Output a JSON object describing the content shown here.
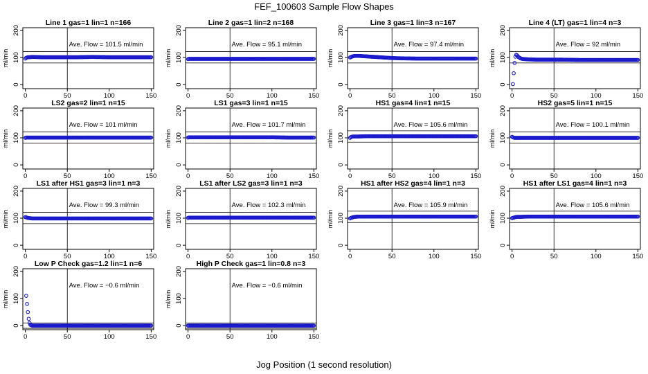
{
  "figure": {
    "title": "FEF_100603  Sample Flow Shapes",
    "xlabel": "Jog Position (1 second resolution)"
  },
  "colors": {
    "points": "#1a1acc",
    "axes": "#000000"
  },
  "chart_data": [
    {
      "type": "scatter",
      "title": "Line 1 gas=1 lin=1 n=166",
      "ave_flow": 101.5,
      "annotation": "Ave. Flow =  101.5  ml/min",
      "ylabel": "ml/min",
      "xlim": [
        -3,
        153
      ],
      "ylim": [
        -15,
        210
      ],
      "xticks": [
        0,
        50,
        100,
        150
      ],
      "yticks": [
        0,
        100,
        200
      ],
      "hlines": [
        80,
        122
      ],
      "vline": 50,
      "series": [
        {
          "x": [
            0,
            1,
            2,
            3,
            4,
            5,
            8,
            10,
            20,
            40,
            60,
            80,
            100,
            120,
            140,
            150
          ],
          "y": [
            96,
            99,
            100,
            101,
            101,
            101,
            102,
            102,
            101,
            101,
            101,
            102,
            101,
            101,
            101,
            101
          ]
        }
      ]
    },
    {
      "type": "scatter",
      "title": "Line 2 gas=1 lin=2 n=168",
      "ave_flow": 95.1,
      "annotation": "Ave. Flow =  95.1  ml/min",
      "ylabel": "ml/min",
      "xlim": [
        -3,
        153
      ],
      "ylim": [
        -15,
        210
      ],
      "xticks": [
        0,
        50,
        100,
        150
      ],
      "yticks": [
        0,
        100,
        200
      ],
      "hlines": [
        80,
        122
      ],
      "vline": 50,
      "series": [
        {
          "x": [
            0,
            1,
            2,
            3,
            5,
            10,
            20,
            40,
            60,
            80,
            100,
            120,
            140,
            150
          ],
          "y": [
            94,
            95,
            95,
            95,
            95,
            95,
            95,
            95,
            95,
            95,
            95,
            95,
            95,
            95
          ]
        }
      ]
    },
    {
      "type": "scatter",
      "title": "Line 3 gas=1 lin=3 n=167",
      "ave_flow": 97.4,
      "annotation": "Ave. Flow =  97.4  ml/min",
      "ylabel": "ml/min",
      "xlim": [
        -3,
        153
      ],
      "ylim": [
        -15,
        210
      ],
      "xticks": [
        0,
        50,
        100,
        150
      ],
      "yticks": [
        0,
        100,
        200
      ],
      "hlines": [
        80,
        122
      ],
      "vline": 50,
      "series": [
        {
          "x": [
            0,
            2,
            4,
            6,
            8,
            10,
            15,
            20,
            25,
            30,
            40,
            50,
            60,
            80,
            100,
            120,
            140,
            150
          ],
          "y": [
            100,
            103,
            105,
            106,
            106,
            106,
            105,
            104,
            103,
            102,
            100,
            98,
            97,
            96,
            96,
            96,
            96,
            96
          ]
        }
      ]
    },
    {
      "type": "scatter",
      "title": "Line 4 (LT) gas=1 lin=4 n=3",
      "ave_flow": 92,
      "annotation": "Ave. Flow =  92  ml/min",
      "ylabel": "ml/min",
      "xlim": [
        -3,
        153
      ],
      "ylim": [
        -15,
        210
      ],
      "xticks": [
        0,
        50,
        100,
        150
      ],
      "yticks": [
        0,
        100,
        200
      ],
      "hlines": [
        80,
        122
      ],
      "vline": 50,
      "series": [
        {
          "x": [
            1,
            2,
            3,
            4,
            5,
            6,
            7,
            8,
            10,
            12,
            15,
            20,
            30,
            40,
            50,
            60,
            80,
            100,
            120,
            140,
            150
          ],
          "y": [
            2,
            42,
            80,
            103,
            110,
            108,
            104,
            101,
            97,
            95,
            94,
            93,
            92,
            92,
            92,
            92,
            91,
            91,
            91,
            91,
            91
          ]
        }
      ]
    },
    {
      "type": "scatter",
      "title": "LS2 gas=2 lin=1 n=15",
      "ave_flow": 101,
      "annotation": "Ave. Flow =  101  ml/min",
      "ylabel": "ml/min",
      "xlim": [
        -3,
        153
      ],
      "ylim": [
        -15,
        210
      ],
      "xticks": [
        0,
        50,
        100,
        150
      ],
      "yticks": [
        0,
        100,
        200
      ],
      "hlines": [
        80,
        122
      ],
      "vline": 50,
      "series": [
        {
          "x": [
            0,
            1,
            2,
            3,
            5,
            10,
            20,
            40,
            60,
            80,
            100,
            120,
            140,
            150
          ],
          "y": [
            100,
            101,
            101,
            101,
            101,
            101,
            101,
            101,
            101,
            101,
            101,
            101,
            101,
            101
          ]
        }
      ]
    },
    {
      "type": "scatter",
      "title": "LS1 gas=3 lin=1 n=15",
      "ave_flow": 101.7,
      "annotation": "Ave. Flow =  101.7  ml/min",
      "ylabel": "ml/min",
      "xlim": [
        -3,
        153
      ],
      "ylim": [
        -15,
        210
      ],
      "xticks": [
        0,
        50,
        100,
        150
      ],
      "yticks": [
        0,
        100,
        200
      ],
      "hlines": [
        80,
        122
      ],
      "vline": 50,
      "series": [
        {
          "x": [
            0,
            1,
            2,
            3,
            5,
            10,
            20,
            40,
            60,
            80,
            100,
            120,
            140,
            150
          ],
          "y": [
            101,
            102,
            102,
            102,
            102,
            102,
            102,
            102,
            102,
            102,
            102,
            101,
            101,
            101
          ]
        }
      ]
    },
    {
      "type": "scatter",
      "title": "HS1 gas=4 lin=1 n=15",
      "ave_flow": 105.6,
      "annotation": "Ave. Flow =  105.6  ml/min",
      "ylabel": "ml/min",
      "xlim": [
        -3,
        153
      ],
      "ylim": [
        -15,
        210
      ],
      "xticks": [
        0,
        50,
        100,
        150
      ],
      "yticks": [
        0,
        100,
        200
      ],
      "hlines": [
        84,
        126
      ],
      "vline": 50,
      "series": [
        {
          "x": [
            0,
            1,
            2,
            3,
            5,
            10,
            20,
            40,
            60,
            80,
            100,
            120,
            140,
            150
          ],
          "y": [
            100,
            103,
            104,
            105,
            105,
            105,
            106,
            106,
            106,
            106,
            106,
            106,
            106,
            106
          ]
        }
      ]
    },
    {
      "type": "scatter",
      "title": "HS2 gas=5 lin=1 n=15",
      "ave_flow": 100.1,
      "annotation": "Ave. Flow =  100.1  ml/min",
      "ylabel": "ml/min",
      "xlim": [
        -3,
        153
      ],
      "ylim": [
        -15,
        210
      ],
      "xticks": [
        0,
        50,
        100,
        150
      ],
      "yticks": [
        0,
        100,
        200
      ],
      "hlines": [
        80,
        122
      ],
      "vline": 50,
      "series": [
        {
          "x": [
            0,
            1,
            2,
            3,
            5,
            10,
            20,
            40,
            60,
            80,
            100,
            120,
            140,
            150
          ],
          "y": [
            104,
            102,
            101,
            100,
            100,
            100,
            100,
            100,
            100,
            100,
            100,
            100,
            100,
            100
          ]
        }
      ]
    },
    {
      "type": "scatter",
      "title": "LS1 after HS1 gas=3 lin=1 n=3",
      "ave_flow": 99.3,
      "annotation": "Ave. Flow =  99.3  ml/min",
      "ylabel": "ml/min",
      "xlim": [
        -3,
        153
      ],
      "ylim": [
        -15,
        210
      ],
      "xticks": [
        0,
        50,
        100,
        150
      ],
      "yticks": [
        0,
        100,
        200
      ],
      "hlines": [
        80,
        122
      ],
      "vline": 50,
      "series": [
        {
          "x": [
            0,
            1,
            2,
            3,
            5,
            8,
            10,
            20,
            40,
            60,
            80,
            100,
            120,
            140,
            150
          ],
          "y": [
            104,
            103,
            102,
            101,
            100,
            99,
            99,
            99,
            99,
            99,
            99,
            99,
            99,
            99,
            99
          ]
        }
      ]
    },
    {
      "type": "scatter",
      "title": "LS1 after LS2 gas=3 lin=1 n=3",
      "ave_flow": 102.3,
      "annotation": "Ave. Flow =  102.3  ml/min",
      "ylabel": "ml/min",
      "xlim": [
        -3,
        153
      ],
      "ylim": [
        -15,
        210
      ],
      "xticks": [
        0,
        50,
        100,
        150
      ],
      "yticks": [
        0,
        100,
        200
      ],
      "hlines": [
        80,
        122
      ],
      "vline": 50,
      "series": [
        {
          "x": [
            0,
            1,
            2,
            3,
            5,
            10,
            20,
            40,
            60,
            80,
            100,
            120,
            140,
            150
          ],
          "y": [
            101,
            102,
            102,
            102,
            102,
            102,
            102,
            102,
            102,
            102,
            102,
            102,
            102,
            102
          ]
        }
      ]
    },
    {
      "type": "scatter",
      "title": "HS1 after HS2 gas=4 lin=1 n=3",
      "ave_flow": 105.9,
      "annotation": "Ave. Flow =  105.9  ml/min",
      "ylabel": "ml/min",
      "xlim": [
        -3,
        153
      ],
      "ylim": [
        -15,
        210
      ],
      "xticks": [
        0,
        50,
        100,
        150
      ],
      "yticks": [
        0,
        100,
        200
      ],
      "hlines": [
        84,
        126
      ],
      "vline": 50,
      "series": [
        {
          "x": [
            0,
            1,
            2,
            3,
            4,
            6,
            10,
            20,
            40,
            60,
            80,
            100,
            120,
            140,
            150
          ],
          "y": [
            99,
            101,
            102,
            103,
            104,
            105,
            106,
            106,
            106,
            106,
            106,
            106,
            106,
            106,
            106
          ]
        }
      ]
    },
    {
      "type": "scatter",
      "title": "HS1 after LS1 gas=4 lin=1 n=3",
      "ave_flow": 105.6,
      "annotation": "Ave. Flow =  105.6  ml/min",
      "ylabel": "ml/min",
      "xlim": [
        -3,
        153
      ],
      "ylim": [
        -15,
        210
      ],
      "xticks": [
        0,
        50,
        100,
        150
      ],
      "yticks": [
        0,
        100,
        200
      ],
      "hlines": [
        84,
        126
      ],
      "vline": 50,
      "series": [
        {
          "x": [
            0,
            1,
            2,
            3,
            4,
            6,
            10,
            20,
            40,
            60,
            80,
            100,
            120,
            140,
            150
          ],
          "y": [
            100,
            101,
            102,
            103,
            104,
            105,
            105,
            106,
            106,
            106,
            106,
            106,
            106,
            106,
            106
          ]
        }
      ]
    },
    {
      "type": "scatter",
      "title": "Low P Check gas=1.2 lin=1 n=6",
      "ave_flow": -0.6,
      "annotation": "Ave. Flow =  −0.6  ml/min",
      "ylabel": "ml/min",
      "xlim": [
        -3,
        153
      ],
      "ylim": [
        -15,
        210
      ],
      "xticks": [
        0,
        50,
        100,
        150
      ],
      "yticks": [
        0,
        100,
        200
      ],
      "hlines": [
        -10,
        10
      ],
      "vline": 50,
      "series": [
        {
          "x": [
            1,
            2,
            3,
            4,
            5,
            6,
            8,
            10,
            15,
            20,
            40,
            60,
            80,
            100,
            120,
            140,
            150
          ],
          "y": [
            110,
            80,
            50,
            25,
            10,
            3,
            0,
            0,
            0,
            0,
            0,
            0,
            0,
            0,
            0,
            0,
            0
          ]
        }
      ]
    },
    {
      "type": "scatter",
      "title": "High P Check gas=1 lin=0.8 n=3",
      "ave_flow": -0.6,
      "annotation": "Ave. Flow =  −0.6  ml/min",
      "ylabel": "ml/min",
      "xlim": [
        -3,
        153
      ],
      "ylim": [
        -15,
        210
      ],
      "xticks": [
        0,
        50,
        100,
        150
      ],
      "yticks": [
        0,
        100,
        200
      ],
      "hlines": [
        -10,
        10
      ],
      "vline": 50,
      "series": [
        {
          "x": [
            0,
            1,
            2,
            3,
            5,
            10,
            20,
            40,
            60,
            80,
            100,
            120,
            140,
            150
          ],
          "y": [
            0,
            0,
            0,
            0,
            0,
            0,
            0,
            0,
            0,
            0,
            0,
            0,
            0,
            0
          ]
        }
      ]
    }
  ]
}
